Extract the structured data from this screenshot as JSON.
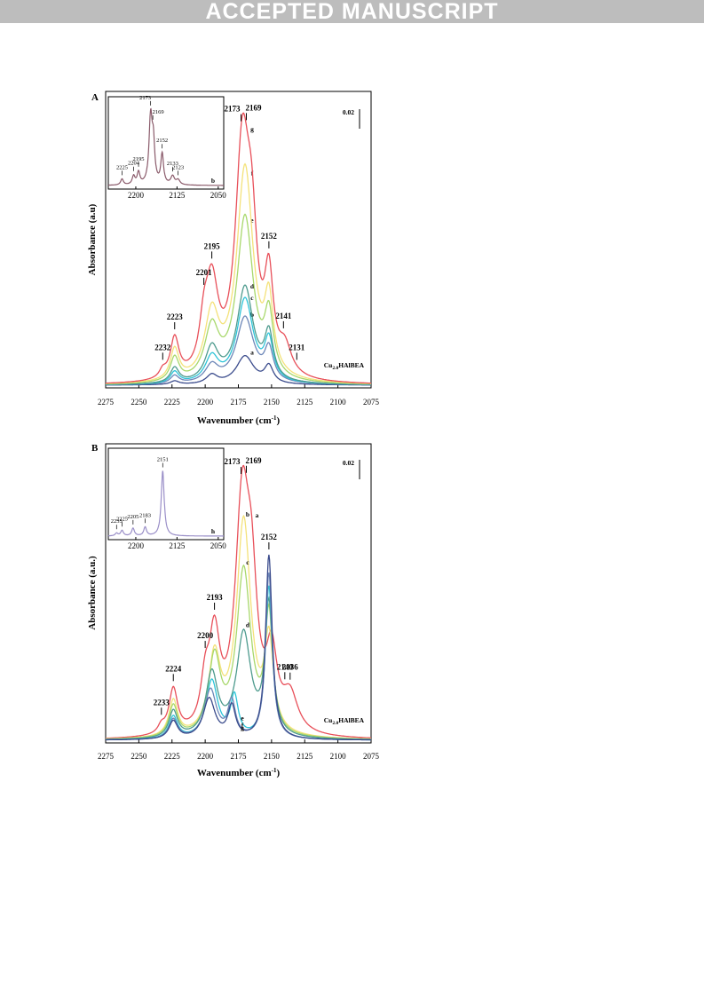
{
  "banner": "ACCEPTED MANUSCRIPT",
  "chart_data": [
    {
      "panel": "A",
      "type": "line",
      "xlabel": "Wavenumber (cm",
      "xlabel_sup": "-1",
      "xlabel_end": ")",
      "ylabel": "Absorbance (a.u)",
      "x_ticks": [
        2275,
        2250,
        2225,
        2200,
        2175,
        2150,
        2125,
        2100,
        2075
      ],
      "x_reversed": true,
      "scale_bar": "0.02",
      "sample_label": "Cu",
      "sample_sub": "2.0",
      "sample_rest": "HAlBEA",
      "peak_labels": [
        {
          "text": "2232",
          "wn": 2232
        },
        {
          "text": "2223",
          "wn": 2223
        },
        {
          "text": "2201",
          "wn": 2201
        },
        {
          "text": "2195",
          "wn": 2195
        },
        {
          "text": "2173",
          "wn": 2173
        },
        {
          "text": "2169",
          "wn": 2169
        },
        {
          "text": "2152",
          "wn": 2152
        },
        {
          "text": "2141",
          "wn": 2141
        },
        {
          "text": "2131",
          "wn": 2131
        }
      ],
      "series": [
        {
          "name": "a",
          "color": "#3a4b8c",
          "peaks": [
            [
              2223,
              0.004,
              4
            ],
            [
              2195,
              0.01,
              5
            ],
            [
              2170,
              0.032,
              8
            ],
            [
              2152,
              0.019,
              4
            ]
          ]
        },
        {
          "name": "b",
          "color": "#6d87b8",
          "peaks": [
            [
              2223,
              0.009,
              4
            ],
            [
              2195,
              0.019,
              6
            ],
            [
              2170,
              0.075,
              8
            ],
            [
              2152,
              0.035,
              4
            ]
          ]
        },
        {
          "name": "c",
          "color": "#2ec4d8",
          "peaks": [
            [
              2223,
              0.013,
              4
            ],
            [
              2195,
              0.028,
              6
            ],
            [
              2170,
              0.095,
              7.5
            ],
            [
              2152,
              0.044,
              4
            ]
          ]
        },
        {
          "name": "d",
          "color": "#4e9b8e",
          "peaks": [
            [
              2223,
              0.017,
              4
            ],
            [
              2195,
              0.038,
              6
            ],
            [
              2170,
              0.108,
              7.5
            ],
            [
              2152,
              0.05,
              4
            ]
          ]
        },
        {
          "name": "e",
          "color": "#a8d86c",
          "peaks": [
            [
              2223,
              0.027,
              4
            ],
            [
              2195,
              0.058,
              6.5
            ],
            [
              2170,
              0.185,
              7.5
            ],
            [
              2152,
              0.066,
              4
            ]
          ]
        },
        {
          "name": "f",
          "color": "#f4e27a",
          "peaks": [
            [
              2223,
              0.035,
              4
            ],
            [
              2195,
              0.072,
              6.5
            ],
            [
              2170,
              0.24,
              7.5
            ],
            [
              2152,
              0.078,
              4
            ]
          ]
        },
        {
          "name": "g",
          "color": "#e8505a",
          "peaks": [
            [
              2232,
              0.008,
              3
            ],
            [
              2223,
              0.045,
              4
            ],
            [
              2201,
              0.04,
              4
            ],
            [
              2195,
              0.1,
              6
            ],
            [
              2172,
              0.25,
              6.5
            ],
            [
              2165,
              0.12,
              5
            ],
            [
              2152,
              0.1,
              4
            ],
            [
              2140,
              0.03,
              6
            ]
          ]
        }
      ],
      "y_range": [
        0,
        0.3
      ],
      "inset": {
        "x_ticks": [
          2200,
          2125,
          2050
        ],
        "xrange": [
          2250,
          2040
        ],
        "curve_label": "b",
        "color": "#8a5a6a",
        "peak_labels": [
          {
            "text": "2225",
            "wn": 2225
          },
          {
            "text": "2204",
            "wn": 2204
          },
          {
            "text": "2195",
            "wn": 2195
          },
          {
            "text": "2173",
            "wn": 2173
          },
          {
            "text": "2169",
            "wn": 2169
          },
          {
            "text": "2152",
            "wn": 2152
          },
          {
            "text": "2133",
            "wn": 2133
          },
          {
            "text": "2123",
            "wn": 2123
          }
        ],
        "peaks": [
          [
            2225,
            0.01,
            3
          ],
          [
            2204,
            0.014,
            3
          ],
          [
            2195,
            0.02,
            3
          ],
          [
            2173,
            0.11,
            3.5
          ],
          [
            2168,
            0.06,
            3
          ],
          [
            2152,
            0.05,
            3
          ],
          [
            2133,
            0.014,
            4
          ],
          [
            2123,
            0.008,
            4
          ]
        ]
      }
    },
    {
      "panel": "B",
      "type": "line",
      "xlabel": "Wavenumber (cm",
      "xlabel_sup": "-1",
      "xlabel_end": ")",
      "ylabel": "Absorbance (a.u.)",
      "x_ticks": [
        2275,
        2250,
        2225,
        2200,
        2175,
        2150,
        2125,
        2100,
        2075
      ],
      "x_reversed": true,
      "scale_bar": "0.02",
      "sample_label": "Cu",
      "sample_sub": "2.0",
      "sample_rest": "HAlBEA",
      "peak_labels": [
        {
          "text": "2233",
          "wn": 2233
        },
        {
          "text": "2224",
          "wn": 2224
        },
        {
          "text": "2200",
          "wn": 2200
        },
        {
          "text": "2193",
          "wn": 2193
        },
        {
          "text": "2173",
          "wn": 2173
        },
        {
          "text": "2169",
          "wn": 2169
        },
        {
          "text": "2152",
          "wn": 2152
        },
        {
          "text": "2140",
          "wn": 2140
        },
        {
          "text": "2136",
          "wn": 2136
        }
      ],
      "series": [
        {
          "name": "a",
          "color": "#e8505a",
          "peaks": [
            [
              2233,
              0.008,
              3
            ],
            [
              2224,
              0.05,
              4
            ],
            [
              2200,
              0.045,
              4
            ],
            [
              2193,
              0.1,
              5
            ],
            [
              2172,
              0.25,
              6.5
            ],
            [
              2165,
              0.12,
              5
            ],
            [
              2150,
              0.08,
              5
            ],
            [
              2136,
              0.04,
              7
            ]
          ]
        },
        {
          "name": "b",
          "color": "#f4e27a",
          "peaks": [
            [
              2224,
              0.04,
              4
            ],
            [
              2193,
              0.085,
              5.5
            ],
            [
              2171,
              0.24,
              6.5
            ],
            [
              2152,
              0.1,
              4
            ]
          ]
        },
        {
          "name": "c",
          "color": "#a8d86c",
          "peaks": [
            [
              2224,
              0.035,
              4
            ],
            [
              2193,
              0.085,
              5.5
            ],
            [
              2171,
              0.185,
              6.5
            ],
            [
              2152,
              0.13,
              3.5
            ]
          ]
        },
        {
          "name": "d",
          "color": "#4e9b8e",
          "peaks": [
            [
              2224,
              0.03,
              4
            ],
            [
              2195,
              0.07,
              5.5
            ],
            [
              2171,
              0.115,
              6.5
            ],
            [
              2152,
              0.145,
              3.5
            ]
          ]
        },
        {
          "name": "e",
          "color": "#2ec4d8",
          "peaks": [
            [
              2224,
              0.025,
              4
            ],
            [
              2195,
              0.065,
              5.5
            ],
            [
              2178,
              0.045,
              3.5
            ],
            [
              2152,
              0.17,
              3.2
            ]
          ]
        },
        {
          "name": "f",
          "color": "#6d87b8",
          "peaks": [
            [
              2224,
              0.022,
              4
            ],
            [
              2196,
              0.055,
              5.5
            ],
            [
              2180,
              0.04,
              3.5
            ],
            [
              2152,
              0.185,
              3
            ]
          ]
        },
        {
          "name": "g",
          "color": "#3a4b8c",
          "peaks": [
            [
              2224,
              0.02,
              4
            ],
            [
              2197,
              0.045,
              5.5
            ],
            [
              2180,
              0.035,
              3.5
            ],
            [
              2152,
              0.205,
              3
            ]
          ]
        }
      ],
      "y_range": [
        0,
        0.3
      ],
      "inset": {
        "x_ticks": [
          2200,
          2125,
          2050
        ],
        "xrange": [
          2250,
          2040
        ],
        "curve_label": "h",
        "color": "#9a8fc8",
        "peak_labels": [
          {
            "text": "2235",
            "wn": 2235
          },
          {
            "text": "2225",
            "wn": 2225
          },
          {
            "text": "2205",
            "wn": 2205
          },
          {
            "text": "2183",
            "wn": 2183
          },
          {
            "text": "2151",
            "wn": 2151
          }
        ],
        "peaks": [
          [
            2235,
            0.005,
            3
          ],
          [
            2225,
            0.01,
            3
          ],
          [
            2205,
            0.014,
            3
          ],
          [
            2183,
            0.016,
            3
          ],
          [
            2151,
            0.12,
            3.2
          ]
        ]
      }
    }
  ]
}
